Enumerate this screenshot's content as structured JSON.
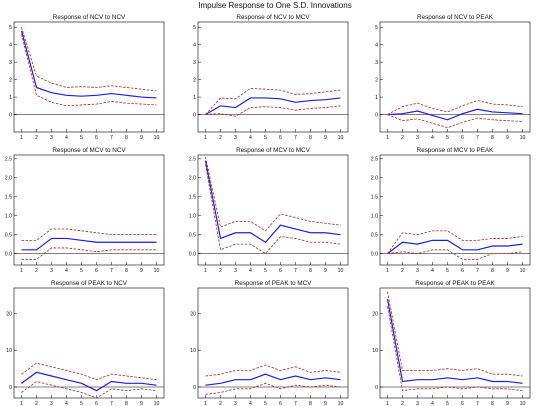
{
  "title": "Impulse Response to One S.D. Innovations",
  "colors": {
    "response": "#1f1fdb",
    "band": "#b22222",
    "axis": "#000000"
  },
  "chart_data": [
    {
      "type": "line",
      "title": "Response of NCV to NCV",
      "x": [
        1,
        2,
        3,
        4,
        5,
        6,
        7,
        8,
        9,
        10
      ],
      "xticks": [
        1,
        2,
        3,
        4,
        5,
        6,
        7,
        8,
        9,
        10
      ],
      "yticks": [
        0,
        1,
        2,
        3,
        4,
        5
      ],
      "ylim": [
        -1,
        5.3
      ],
      "series": [
        {
          "role": "response",
          "values": [
            4.8,
            1.55,
            1.25,
            1.1,
            1.05,
            1.1,
            1.2,
            1.1,
            1.0,
            0.95
          ]
        },
        {
          "role": "upper",
          "values": [
            5.0,
            2.2,
            1.8,
            1.55,
            1.6,
            1.55,
            1.65,
            1.55,
            1.45,
            1.35
          ]
        },
        {
          "role": "lower",
          "values": [
            4.6,
            1.1,
            0.7,
            0.5,
            0.55,
            0.6,
            0.75,
            0.65,
            0.6,
            0.55
          ]
        }
      ]
    },
    {
      "type": "line",
      "title": "Response of NCV to MCV",
      "x": [
        1,
        2,
        3,
        4,
        5,
        6,
        7,
        8,
        9,
        10
      ],
      "xticks": [
        1,
        2,
        3,
        4,
        5,
        6,
        7,
        8,
        9,
        10
      ],
      "yticks": [
        0,
        1,
        2,
        3,
        4,
        5
      ],
      "ylim": [
        -1,
        5.3
      ],
      "series": [
        {
          "role": "response",
          "values": [
            0,
            0.5,
            0.4,
            0.95,
            0.95,
            0.9,
            0.7,
            0.8,
            0.85,
            0.95
          ]
        },
        {
          "role": "upper",
          "values": [
            0,
            0.95,
            0.9,
            1.5,
            1.45,
            1.4,
            1.15,
            1.2,
            1.3,
            1.4
          ]
        },
        {
          "role": "lower",
          "values": [
            0,
            0.05,
            -0.1,
            0.4,
            0.45,
            0.4,
            0.25,
            0.35,
            0.4,
            0.5
          ]
        }
      ]
    },
    {
      "type": "line",
      "title": "Response of NCV to PEAK",
      "x": [
        1,
        2,
        3,
        4,
        5,
        6,
        7,
        8,
        9,
        10
      ],
      "xticks": [
        1,
        2,
        3,
        4,
        5,
        6,
        7,
        8,
        9,
        10
      ],
      "yticks": [
        0,
        1,
        2,
        3,
        4,
        5
      ],
      "ylim": [
        -1,
        5.3
      ],
      "series": [
        {
          "role": "response",
          "values": [
            0,
            0.05,
            0.2,
            -0.05,
            -0.3,
            0.05,
            0.3,
            0.15,
            0.1,
            0.05
          ]
        },
        {
          "role": "upper",
          "values": [
            0,
            0.45,
            0.65,
            0.35,
            0.15,
            0.5,
            0.8,
            0.6,
            0.55,
            0.45
          ]
        },
        {
          "role": "lower",
          "values": [
            0,
            -0.35,
            -0.25,
            -0.5,
            -0.75,
            -0.45,
            -0.2,
            -0.3,
            -0.35,
            -0.4
          ]
        }
      ]
    },
    {
      "type": "line",
      "title": "Response of MCV to NCV",
      "x": [
        1,
        2,
        3,
        4,
        5,
        6,
        7,
        8,
        9,
        10
      ],
      "xticks": [
        1,
        2,
        3,
        4,
        5,
        6,
        7,
        8,
        9,
        10
      ],
      "yticks": [
        0,
        0.5,
        1,
        1.5,
        2,
        2.5
      ],
      "ytick_labels": [
        "0.0",
        "0.5",
        "1.0",
        "1.5",
        "2.0",
        "2.5"
      ],
      "ylim": [
        -0.3,
        2.6
      ],
      "series": [
        {
          "role": "response",
          "values": [
            0.1,
            0.1,
            0.4,
            0.4,
            0.35,
            0.3,
            0.3,
            0.3,
            0.3,
            0.3
          ]
        },
        {
          "role": "upper",
          "values": [
            0.35,
            0.35,
            0.65,
            0.65,
            0.6,
            0.55,
            0.5,
            0.5,
            0.5,
            0.5
          ]
        },
        {
          "role": "lower",
          "values": [
            -0.15,
            -0.15,
            0.15,
            0.15,
            0.1,
            0.05,
            0.1,
            0.1,
            0.1,
            0.1
          ]
        }
      ]
    },
    {
      "type": "line",
      "title": "Response of MCV to MCV",
      "x": [
        1,
        2,
        3,
        4,
        5,
        6,
        7,
        8,
        9,
        10
      ],
      "xticks": [
        1,
        2,
        3,
        4,
        5,
        6,
        7,
        8,
        9,
        10
      ],
      "yticks": [
        0,
        0.5,
        1,
        1.5,
        2,
        2.5
      ],
      "ytick_labels": [
        "0.0",
        "0.5",
        "1.0",
        "1.5",
        "2.0",
        "2.5"
      ],
      "ylim": [
        -0.3,
        2.6
      ],
      "series": [
        {
          "role": "response",
          "values": [
            2.45,
            0.4,
            0.55,
            0.55,
            0.3,
            0.75,
            0.65,
            0.55,
            0.55,
            0.5
          ]
        },
        {
          "role": "upper",
          "values": [
            2.55,
            0.7,
            0.85,
            0.85,
            0.6,
            1.05,
            0.95,
            0.85,
            0.8,
            0.75
          ]
        },
        {
          "role": "lower",
          "values": [
            2.35,
            0.1,
            0.25,
            0.25,
            0.0,
            0.45,
            0.4,
            0.3,
            0.3,
            0.25
          ]
        }
      ]
    },
    {
      "type": "line",
      "title": "Response of MCV to PEAK",
      "x": [
        1,
        2,
        3,
        4,
        5,
        6,
        7,
        8,
        9,
        10
      ],
      "xticks": [
        1,
        2,
        3,
        4,
        5,
        6,
        7,
        8,
        9,
        10
      ],
      "yticks": [
        0,
        0.5,
        1,
        1.5,
        2,
        2.5
      ],
      "ytick_labels": [
        "0.0",
        "0.5",
        "1.0",
        "1.5",
        "2.0",
        "2.5"
      ],
      "ylim": [
        -0.3,
        2.6
      ],
      "series": [
        {
          "role": "response",
          "values": [
            0,
            0.3,
            0.25,
            0.35,
            0.35,
            0.1,
            0.1,
            0.2,
            0.2,
            0.25
          ]
        },
        {
          "role": "upper",
          "values": [
            0,
            0.55,
            0.5,
            0.6,
            0.6,
            0.35,
            0.35,
            0.4,
            0.4,
            0.45
          ]
        },
        {
          "role": "lower",
          "values": [
            0,
            0.05,
            0.0,
            0.1,
            0.1,
            -0.15,
            -0.15,
            0.0,
            0.0,
            0.05
          ]
        }
      ]
    },
    {
      "type": "line",
      "title": "Response of PEAK to NCV",
      "x": [
        1,
        2,
        3,
        4,
        5,
        6,
        7,
        8,
        9,
        10
      ],
      "xticks": [
        1,
        2,
        3,
        4,
        5,
        6,
        7,
        8,
        9,
        10
      ],
      "yticks": [
        0,
        10,
        20
      ],
      "ylim": [
        -3,
        27
      ],
      "series": [
        {
          "role": "response",
          "values": [
            1.0,
            4.0,
            3.0,
            2.0,
            1.0,
            -1.0,
            1.5,
            1.0,
            1.0,
            0.5
          ]
        },
        {
          "role": "upper",
          "values": [
            3.5,
            6.5,
            5.5,
            4.5,
            3.5,
            2.0,
            3.5,
            3.0,
            2.5,
            2.0
          ]
        },
        {
          "role": "lower",
          "values": [
            -1.5,
            1.5,
            0.5,
            -0.5,
            -1.5,
            -3.0,
            -0.5,
            -1.0,
            -0.5,
            -1.0
          ]
        }
      ]
    },
    {
      "type": "line",
      "title": "Response of PEAK to MCV",
      "x": [
        1,
        2,
        3,
        4,
        5,
        6,
        7,
        8,
        9,
        10
      ],
      "xticks": [
        1,
        2,
        3,
        4,
        5,
        6,
        7,
        8,
        9,
        10
      ],
      "yticks": [
        0,
        10,
        20
      ],
      "ylim": [
        -3,
        27
      ],
      "series": [
        {
          "role": "response",
          "values": [
            0.5,
            1.0,
            2.0,
            2.0,
            3.5,
            2.0,
            3.0,
            2.0,
            2.5,
            2.0
          ]
        },
        {
          "role": "upper",
          "values": [
            3.0,
            3.5,
            4.5,
            4.5,
            6.0,
            4.5,
            5.5,
            4.0,
            4.5,
            4.0
          ]
        },
        {
          "role": "lower",
          "values": [
            -2.0,
            -1.5,
            -0.5,
            -0.5,
            1.0,
            -0.5,
            0.5,
            0.0,
            0.5,
            0.0
          ]
        }
      ]
    },
    {
      "type": "line",
      "title": "Response of PEAK to PEAK",
      "x": [
        1,
        2,
        3,
        4,
        5,
        6,
        7,
        8,
        9,
        10
      ],
      "xticks": [
        1,
        2,
        3,
        4,
        5,
        6,
        7,
        8,
        9,
        10
      ],
      "yticks": [
        0,
        10,
        20
      ],
      "ylim": [
        -3,
        27
      ],
      "series": [
        {
          "role": "response",
          "values": [
            24.0,
            1.5,
            2.0,
            2.0,
            2.5,
            2.0,
            2.5,
            1.5,
            1.5,
            1.0
          ]
        },
        {
          "role": "upper",
          "values": [
            26.0,
            4.5,
            4.5,
            4.5,
            5.0,
            4.5,
            5.0,
            3.5,
            3.5,
            3.0
          ]
        },
        {
          "role": "lower",
          "values": [
            22.0,
            -1.0,
            -0.5,
            -0.5,
            0.0,
            -0.5,
            0.0,
            -0.5,
            -0.5,
            -1.0
          ]
        }
      ]
    }
  ]
}
